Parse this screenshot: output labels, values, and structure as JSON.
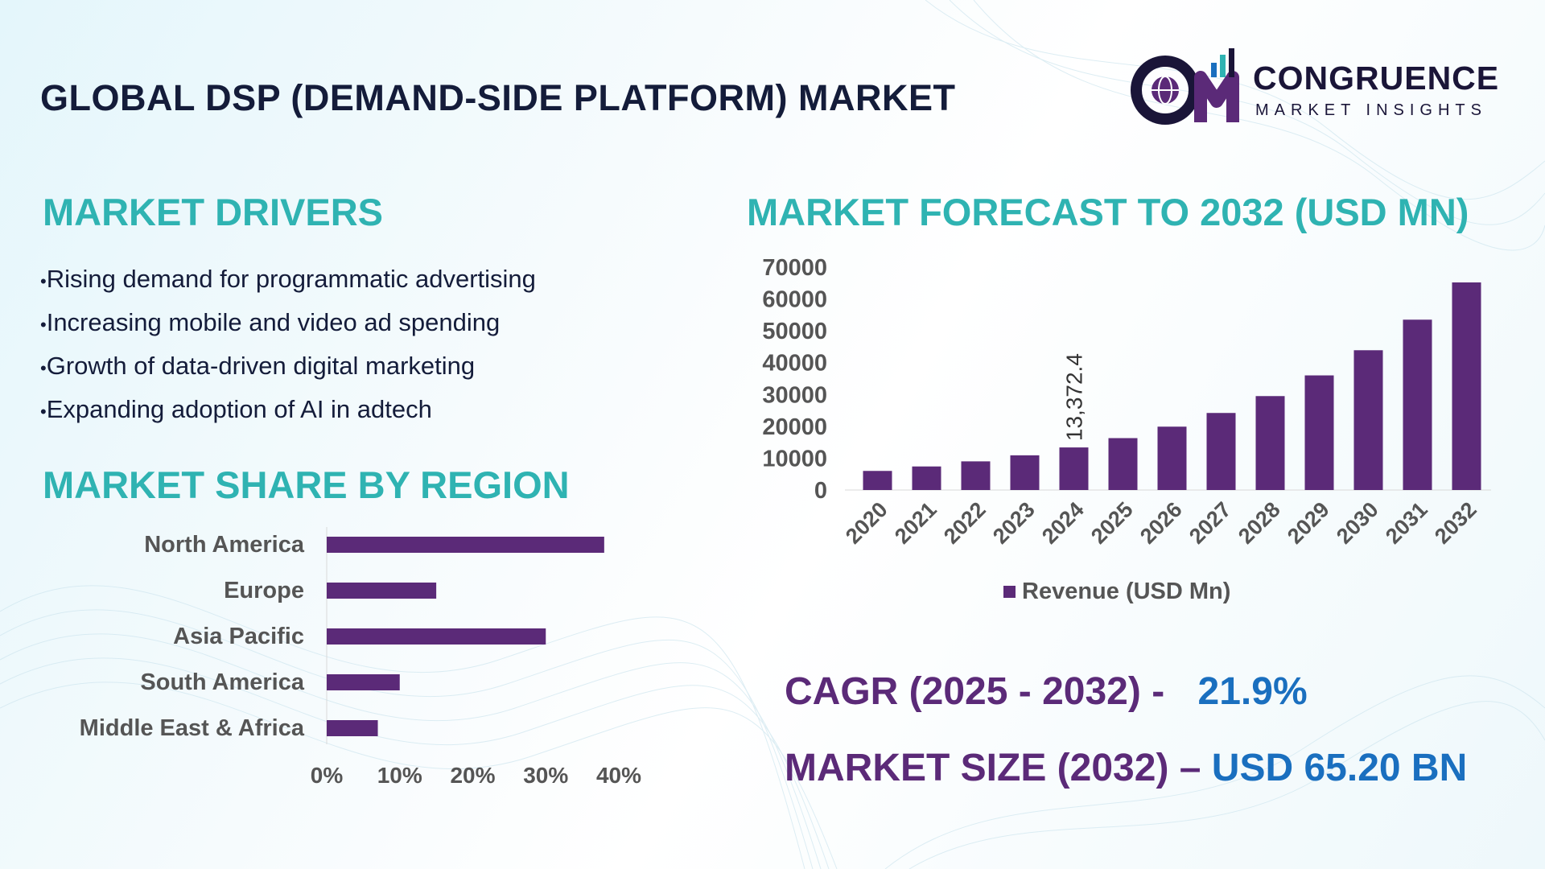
{
  "title": "GLOBAL DSP (DEMAND-SIDE PLATFORM) MARKET",
  "brand": {
    "name": "CONGRUENCE",
    "sub": "MARKET INSIGHTS",
    "icon": "cm-globe-chart-logo"
  },
  "colors": {
    "bar": "#5b2a78",
    "heading": "#2fb3b2",
    "title": "#141c3a",
    "accent_blue": "#1a6fbf"
  },
  "drivers": {
    "heading": "MARKET DRIVERS",
    "items": [
      "Rising demand for programmatic advertising",
      "Increasing mobile and video ad spending",
      "Growth of data-driven digital marketing",
      "Expanding adoption of AI in adtech"
    ]
  },
  "region": {
    "heading": "MARKET SHARE BY REGION"
  },
  "forecast": {
    "heading": "MARKET FORECAST TO 2032 (USD MN)"
  },
  "kpis": {
    "cagr_label": "CAGR (2025 - 2032) -",
    "cagr_value": "21.9%",
    "size_label": "MARKET SIZE (2032) –",
    "size_value": "USD 65.20 BN"
  },
  "chart_data": [
    {
      "type": "bar",
      "orientation": "horizontal",
      "categories": [
        "North America",
        "Europe",
        "Asia Pacific",
        "South America",
        "Middle East & Africa"
      ],
      "values": [
        38,
        15,
        30,
        10,
        7
      ],
      "xlim": [
        0,
        40
      ],
      "ticks": [
        "0%",
        "10%",
        "20%",
        "30%",
        "40%"
      ]
    },
    {
      "type": "bar",
      "categories": [
        "2020",
        "2021",
        "2022",
        "2023",
        "2024",
        "2025",
        "2026",
        "2027",
        "2028",
        "2029",
        "2030",
        "2031",
        "2032"
      ],
      "series": [
        {
          "name": "Revenue (USD Mn)",
          "values": [
            6000,
            7400,
            9000,
            10900,
            13372.4,
            16300,
            19900,
            24200,
            29500,
            36000,
            43900,
            53500,
            65200
          ]
        }
      ],
      "data_labels": [
        {
          "category": "2024",
          "text": "13,372.4"
        }
      ],
      "ylim": [
        0,
        70000
      ],
      "yticks": [
        "0",
        "10000",
        "20000",
        "30000",
        "40000",
        "50000",
        "60000",
        "70000"
      ],
      "legend": "bottom"
    }
  ]
}
